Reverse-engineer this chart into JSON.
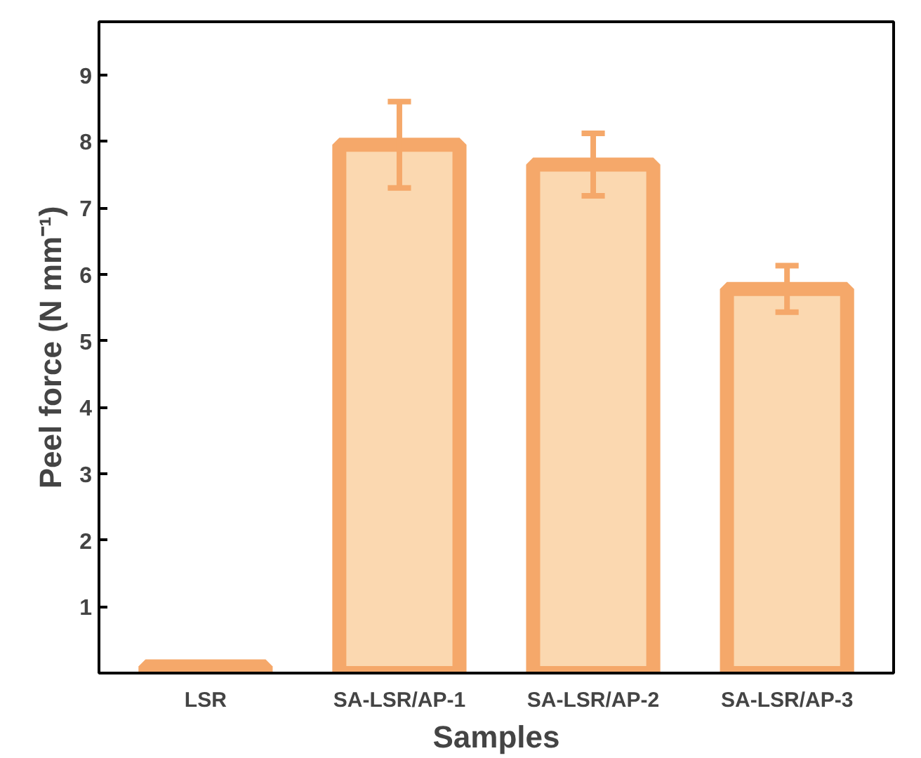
{
  "chart_data": {
    "type": "bar",
    "xlabel": "Samples",
    "ylabel": "Peel force (N mm⁻¹)",
    "categories": [
      "LSR",
      "SA-LSR/AP-1",
      "SA-LSR/AP-2",
      "SA-LSR/AP-3"
    ],
    "values": [
      0.1,
      7.95,
      7.65,
      5.78
    ],
    "errors": [
      null,
      0.65,
      0.47,
      0.35
    ],
    "color": "#f5a86a",
    "ylim": [
      0,
      9.8
    ],
    "yticks": [
      1,
      2,
      3,
      4,
      5,
      6,
      7,
      8,
      9
    ],
    "grid": false
  }
}
